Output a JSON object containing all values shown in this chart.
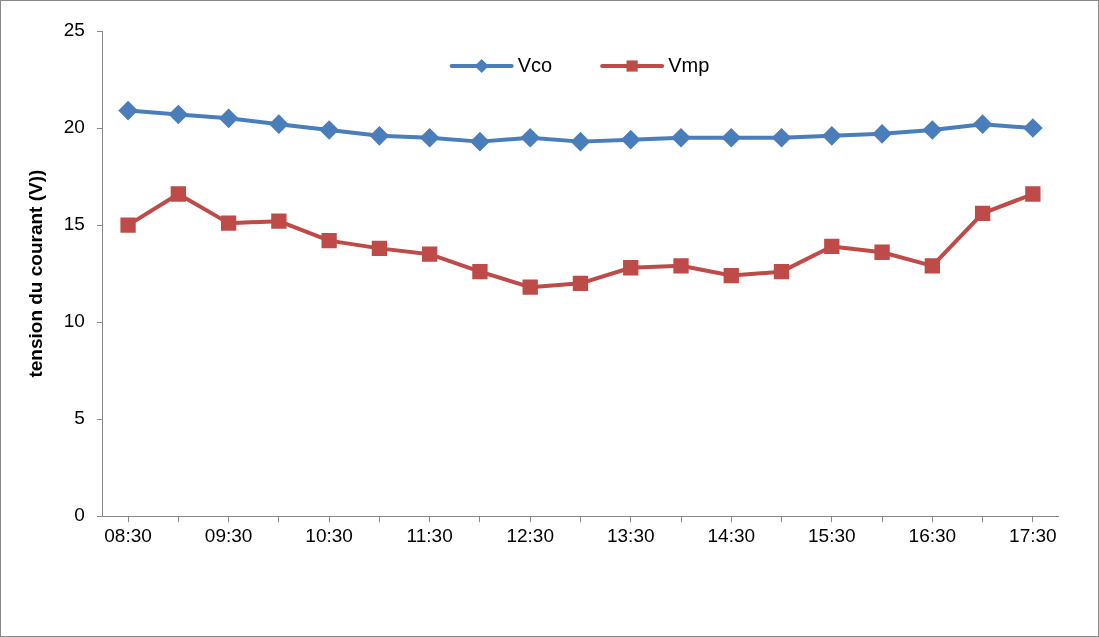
{
  "chart_data": {
    "type": "line",
    "ylabel": "tension du courant (V))",
    "categories": [
      "08:30",
      null,
      "09:30",
      null,
      "10:30",
      null,
      "11:30",
      null,
      "12:30",
      null,
      "13:30",
      null,
      "14:30",
      null,
      "15:30",
      null,
      "16:30",
      null,
      "17:30"
    ],
    "series": [
      {
        "name": "Vco",
        "color": "#4a7ebb",
        "marker": "diamond",
        "values": [
          20.9,
          20.7,
          20.5,
          20.2,
          19.9,
          19.6,
          19.5,
          19.3,
          19.5,
          19.3,
          19.4,
          19.5,
          19.5,
          19.5,
          19.6,
          19.7,
          19.9,
          20.2,
          20.0
        ]
      },
      {
        "name": "Vmp",
        "color": "#be4b48",
        "marker": "square",
        "values": [
          15.0,
          16.6,
          15.1,
          15.2,
          14.2,
          13.8,
          13.5,
          12.6,
          11.8,
          12.0,
          12.8,
          12.9,
          12.4,
          12.6,
          13.9,
          13.6,
          12.9,
          15.6,
          16.6
        ]
      }
    ],
    "ylim": [
      0,
      25
    ],
    "yticks": [
      0,
      5,
      10,
      15,
      20,
      25
    ],
    "grid": false,
    "legend": "top",
    "line_style": "solid"
  }
}
